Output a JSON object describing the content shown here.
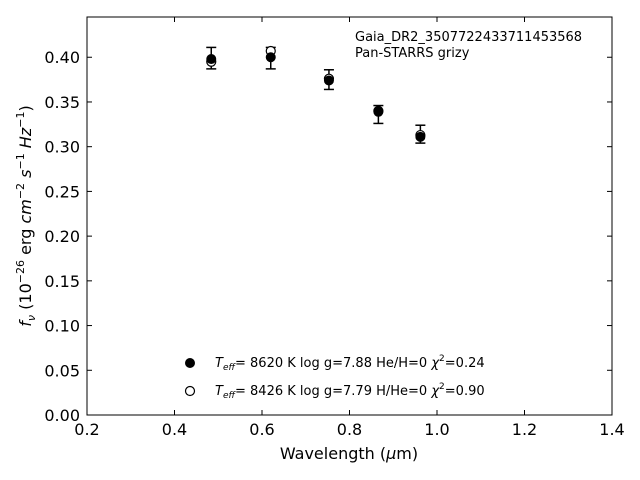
{
  "chart_data": {
    "type": "scatter",
    "xlabel": "Wavelength (μm)",
    "ylabel": "f_ν (10^-26 erg cm^-2 s^-1 Hz^-1)",
    "xlim": [
      0.2,
      1.4
    ],
    "ylim": [
      0.0,
      0.445
    ],
    "xticks": [
      0.2,
      0.4,
      0.6,
      0.8,
      1.0,
      1.2,
      1.4
    ],
    "xtick_labels": [
      "0.2",
      "0.4",
      "0.6",
      "0.8",
      "1.0",
      "1.2",
      "1.4"
    ],
    "yticks": [
      0.0,
      0.05,
      0.1,
      0.15,
      0.2,
      0.25,
      0.3,
      0.35,
      0.4
    ],
    "ytick_labels": [
      "0.00",
      "0.05",
      "0.10",
      "0.15",
      "0.20",
      "0.25",
      "0.30",
      "0.35",
      "0.40"
    ],
    "grid": false,
    "annotation": [
      "Gaia_DR2_3507722433711453568",
      "Pan-STARRS grizy"
    ],
    "series": [
      {
        "marker": "filled-circle",
        "legend": {
          "teff": "8620 K",
          "logg": "log g=7.88",
          "comp": "He/H=0",
          "chi2": "=0.24"
        },
        "x": [
          0.484,
          0.62,
          0.753,
          0.866,
          0.962
        ],
        "y": [
          0.398,
          0.4,
          0.374,
          0.339,
          0.311
        ]
      },
      {
        "marker": "open-circle",
        "legend": {
          "teff": "8426 K",
          "logg": "log g=7.79",
          "comp": "H/He=0",
          "chi2": "=0.90"
        },
        "x": [
          0.484,
          0.62,
          0.753,
          0.866,
          0.962
        ],
        "y": [
          0.395,
          0.407,
          0.376,
          0.34,
          0.313
        ]
      }
    ],
    "observed": {
      "x": [
        0.484,
        0.62,
        0.753,
        0.866,
        0.962
      ],
      "y": [
        0.399,
        0.399,
        0.375,
        0.336,
        0.314
      ],
      "yerr": [
        0.012,
        0.012,
        0.011,
        0.01,
        0.01
      ]
    }
  }
}
